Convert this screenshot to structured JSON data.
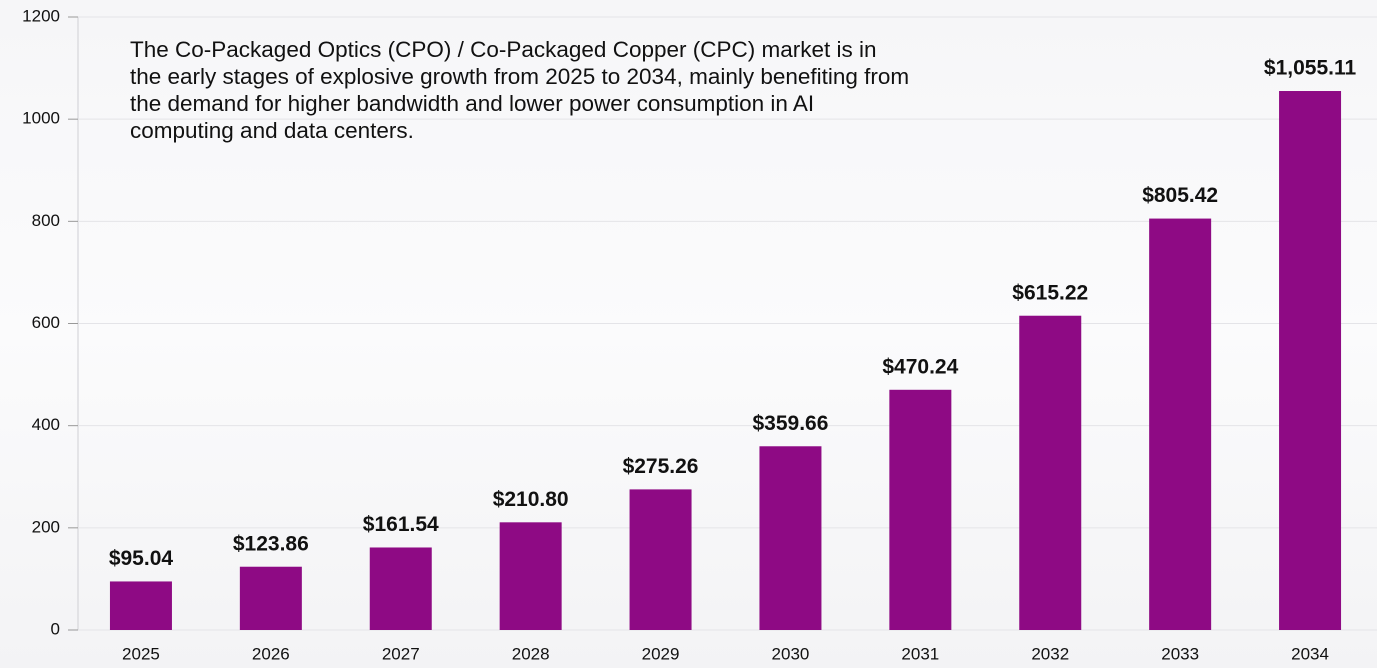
{
  "chart_data": {
    "type": "bar",
    "annotation": "The Co-Packaged Optics (CPO) / Co-Packaged Copper (CPC) market is in the early stages of explosive growth from 2025 to 2034, mainly benefiting from the demand for higher bandwidth and lower power consumption in AI computing and data centers.",
    "categories": [
      "2025",
      "2026",
      "2027",
      "2028",
      "2029",
      "2030",
      "2031",
      "2032",
      "2033",
      "2034"
    ],
    "values": [
      95.04,
      123.86,
      161.54,
      210.8,
      275.26,
      359.66,
      470.24,
      615.22,
      805.42,
      1055.11
    ],
    "value_labels": [
      "$95.04",
      "$123.86",
      "$161.54",
      "$210.80",
      "$275.26",
      "$359.66",
      "$470.24",
      "$615.22",
      "$805.42",
      "$1,055.11"
    ],
    "color": "#8e0a84",
    "ylim": [
      0,
      1200
    ],
    "yticks": [
      0,
      200,
      400,
      600,
      800,
      1000,
      1200
    ],
    "grid": true
  }
}
